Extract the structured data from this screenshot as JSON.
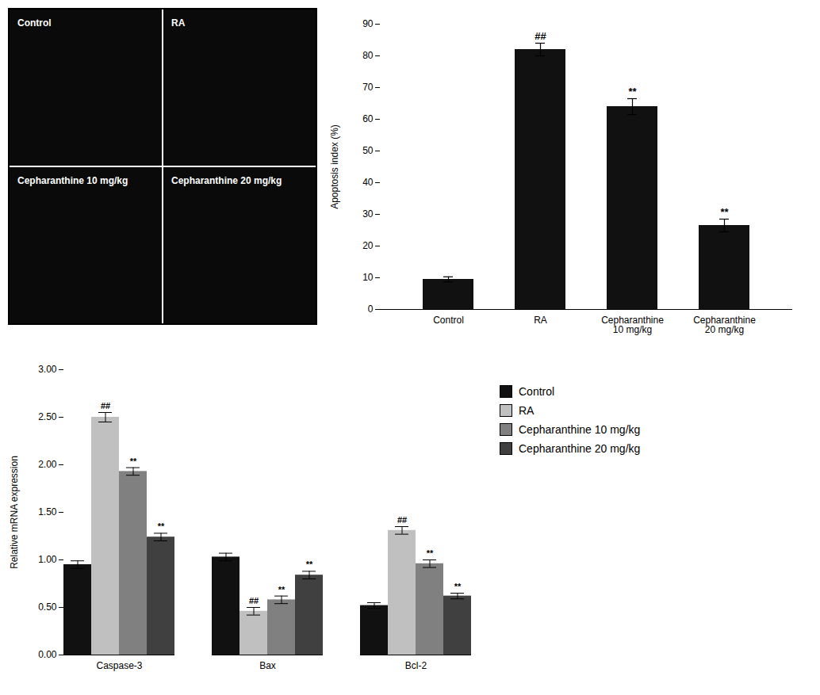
{
  "chart_data": [
    {
      "type": "image",
      "annotations": [
        "Control",
        "RA",
        "Cepharanthine 10 mg/kg",
        "Cepharanthine 20 mg/kg"
      ]
    },
    {
      "type": "bar",
      "categories": [
        "Control",
        "RA",
        "Cepharanthine\n10 mg/kg",
        "Cepharanthine\n20 mg/kg"
      ],
      "values": [
        9.5,
        82.0,
        64.0,
        26.5
      ],
      "errors": [
        0.8,
        2.0,
        2.5,
        2.0
      ],
      "annotations": [
        null,
        "##",
        "**",
        "**"
      ],
      "color": "#111111",
      "ylabel": "Apoptosis index (%)",
      "ylim": [
        0,
        90
      ],
      "yticks": [
        0,
        10,
        20,
        30,
        40,
        50,
        60,
        70,
        80,
        90
      ]
    },
    {
      "type": "bar",
      "categories": [
        "Caspase-3",
        "Bax",
        "Bcl-2"
      ],
      "series": [
        {
          "name": "Control",
          "color": "#111111",
          "values": [
            0.95,
            1.03,
            0.52
          ],
          "errors": [
            0.04,
            0.04,
            0.03
          ],
          "annotations": [
            null,
            null,
            null
          ]
        },
        {
          "name": "RA",
          "color": "#c0c0c0",
          "values": [
            2.5,
            0.46,
            1.31
          ],
          "errors": [
            0.05,
            0.04,
            0.04
          ],
          "annotations": [
            "##",
            "##",
            "##"
          ]
        },
        {
          "name": "Cepharanthine 10 mg/kg",
          "color": "#808080",
          "values": [
            1.93,
            0.58,
            0.96
          ],
          "errors": [
            0.04,
            0.04,
            0.04
          ],
          "annotations": [
            "**",
            "**",
            "**"
          ]
        },
        {
          "name": "Cepharanthine 20 mg/kg",
          "color": "#404040",
          "values": [
            1.24,
            0.84,
            0.62
          ],
          "errors": [
            0.04,
            0.04,
            0.03
          ],
          "annotations": [
            "**",
            "**",
            "**"
          ]
        }
      ],
      "ylabel": "Relative mRNA expression",
      "ylim": [
        0.0,
        3.0
      ],
      "yticks": [
        {
          "value": 0,
          "label": "0.00"
        },
        {
          "value": 0.5,
          "label": "0.50"
        },
        {
          "value": 1,
          "label": "1.00"
        },
        {
          "value": 1.5,
          "label": "1.50"
        },
        {
          "value": 2,
          "label": "2.00"
        },
        {
          "value": 2.5,
          "label": "2.50"
        },
        {
          "value": 3,
          "label": "3.00"
        }
      ],
      "legend": "right"
    }
  ]
}
